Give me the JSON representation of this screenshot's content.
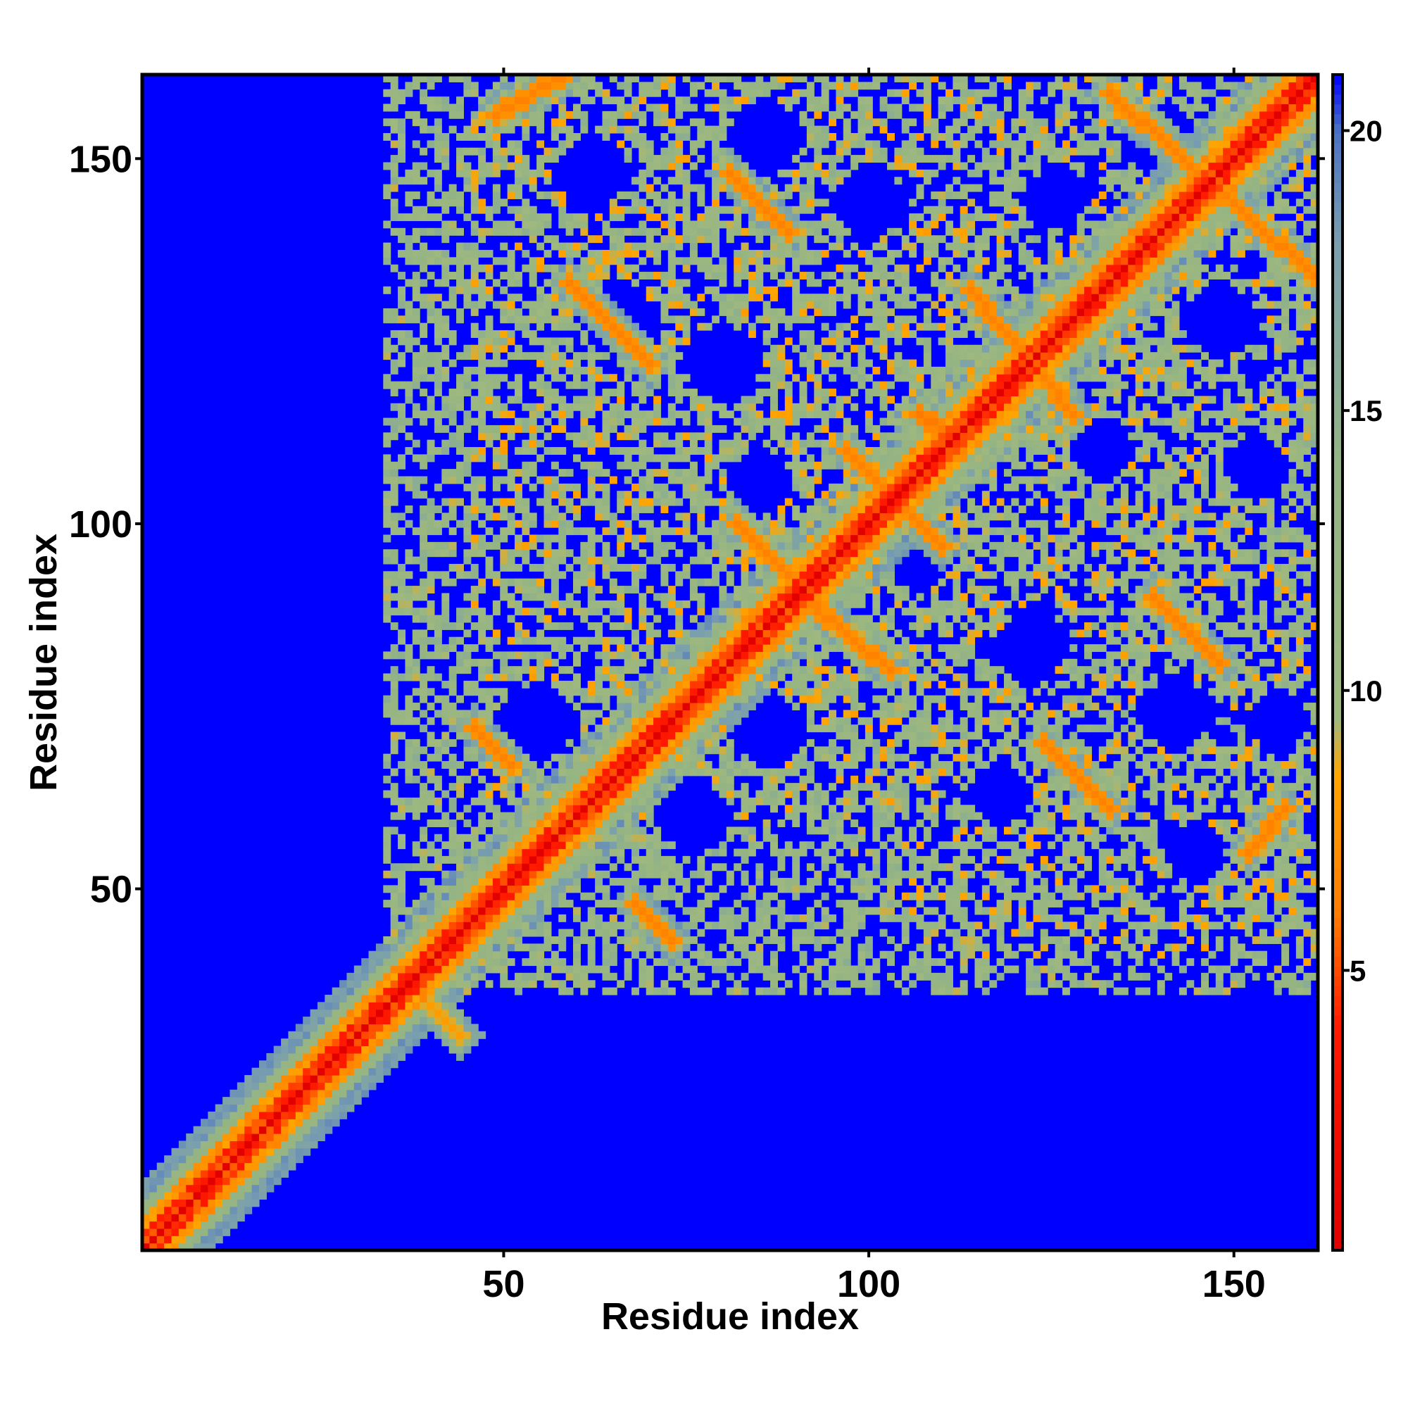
{
  "chart_data": {
    "type": "heatmap",
    "title": "",
    "xlabel": "Residue index",
    "ylabel": "Residue index",
    "xlim": [
      1,
      161
    ],
    "ylim": [
      1,
      161
    ],
    "xticks": [
      50,
      100,
      150
    ],
    "yticks": [
      50,
      100,
      150
    ],
    "x_tick_labels": [
      "50",
      "100",
      "150"
    ],
    "y_tick_labels": [
      "50",
      "100",
      "150"
    ],
    "colorbar": {
      "min": 0,
      "max": 21,
      "ticks": [
        5,
        10,
        15,
        20
      ],
      "tick_labels": [
        "5",
        "10",
        "15",
        "20"
      ],
      "stops": [
        {
          "value": 0,
          "color": "#e00000"
        },
        {
          "value": 4,
          "color": "#ff1a00"
        },
        {
          "value": 6,
          "color": "#ff7b00"
        },
        {
          "value": 8.5,
          "color": "#ffa500"
        },
        {
          "value": 9.5,
          "color": "#9fb87f"
        },
        {
          "value": 14,
          "color": "#94b484"
        },
        {
          "value": 18,
          "color": "#7a9fae"
        },
        {
          "value": 20,
          "color": "#4a72c4"
        },
        {
          "value": 21,
          "color": "#0000ff"
        }
      ]
    },
    "background_color": "#0000ff",
    "diagonal": {
      "value": 0
    },
    "diagonal_band": [
      {
        "offset_from": 1,
        "offset_to": 2,
        "value": 3.5
      },
      {
        "offset_from": 3,
        "offset_to": 4,
        "value": 6.5
      },
      {
        "offset_from": 5,
        "offset_to": 6,
        "value": 12
      },
      {
        "offset_from": 7,
        "offset_to": 9,
        "value": 17
      }
    ],
    "diagonal_band_ends": [
      {
        "from": 1,
        "to": 45,
        "max_offset": 9
      },
      {
        "from": 40,
        "to": 161,
        "max_offset": 12
      }
    ],
    "contact_stripes": [
      {
        "start": [
          14,
          12
        ],
        "end": [
          2,
          3
        ],
        "value": 7
      },
      {
        "start": [
          22,
          21
        ],
        "end": [
          14,
          12
        ],
        "value": 7
      },
      {
        "start": [
          30,
          27
        ],
        "end": [
          22,
          21
        ],
        "value": 7
      },
      {
        "start": [
          68,
          48
        ],
        "end": [
          73,
          43
        ],
        "value": 6.5
      },
      {
        "start": [
          46,
          72
        ],
        "end": [
          51,
          67
        ],
        "value": 6.5
      },
      {
        "start": [
          82,
          100
        ],
        "end": [
          93,
          89
        ],
        "value": 6.5
      },
      {
        "start": [
          92,
          89
        ],
        "end": [
          103,
          80
        ],
        "value": 6.5
      },
      {
        "start": [
          97,
          110
        ],
        "end": [
          110,
          97
        ],
        "value": 6.5
      },
      {
        "start": [
          111,
          112
        ],
        "end": [
          107,
          115
        ],
        "value": 6
      },
      {
        "start": [
          59,
          133
        ],
        "end": [
          70,
          122
        ],
        "value": 6.5
      },
      {
        "start": [
          81,
          148
        ],
        "end": [
          89,
          140
        ],
        "value": 6.5
      },
      {
        "start": [
          49,
          156
        ],
        "end": [
          59,
          162
        ],
        "value": 6.5
      },
      {
        "start": [
          114,
          132
        ],
        "end": [
          128,
          115
        ],
        "value": 6.5
      },
      {
        "start": [
          133,
          159
        ],
        "end": [
          161,
          134
        ],
        "value": 6.5
      },
      {
        "start": [
          139,
          90
        ],
        "end": [
          148,
          81
        ],
        "value": 6.5
      },
      {
        "start": [
          124,
          70
        ],
        "end": [
          133,
          61
        ],
        "value": 6.5
      },
      {
        "start": [
          157,
          61
        ],
        "end": [
          152,
          55
        ],
        "value": 6.5
      },
      {
        "start": [
          40,
          34
        ],
        "end": [
          44,
          30
        ],
        "value": 8
      }
    ],
    "halo_regions": [
      {
        "x": [
          34,
          161
        ],
        "y": [
          36,
          162
        ],
        "value": 12,
        "density": 0.55
      },
      {
        "x": [
          46,
          160
        ],
        "y": [
          60,
          162
        ],
        "value": 11,
        "density": 0.6
      },
      {
        "x": [
          105,
          161
        ],
        "y": [
          40,
          100
        ],
        "value": 11,
        "density": 0.55
      }
    ],
    "empty_pockets": [
      {
        "center": [
          55,
          73
        ],
        "radius": 5
      },
      {
        "center": [
          76,
          60
        ],
        "radius": 5
      },
      {
        "center": [
          86,
          72
        ],
        "radius": 5
      },
      {
        "center": [
          66,
          128
        ],
        "radius": 5
      },
      {
        "center": [
          80,
          122
        ],
        "radius": 5
      },
      {
        "center": [
          62,
          148
        ],
        "radius": 5
      },
      {
        "center": [
          86,
          153
        ],
        "radius": 5
      },
      {
        "center": [
          100,
          144
        ],
        "radius": 5
      },
      {
        "center": [
          85,
          106
        ],
        "radius": 4
      },
      {
        "center": [
          107,
          95
        ],
        "radius": 4
      },
      {
        "center": [
          122,
          83
        ],
        "radius": 5
      },
      {
        "center": [
          142,
          74
        ],
        "radius": 5
      },
      {
        "center": [
          156,
          73
        ],
        "radius": 4
      },
      {
        "center": [
          118,
          63
        ],
        "radius": 4
      },
      {
        "center": [
          145,
          55
        ],
        "radius": 4
      },
      {
        "center": [
          148,
          128
        ],
        "radius": 5
      },
      {
        "center": [
          153,
          108
        ],
        "radius": 4
      },
      {
        "center": [
          140,
          152
        ],
        "radius": 5
      },
      {
        "center": [
          126,
          145
        ],
        "radius": 4
      },
      {
        "center": [
          132,
          110
        ],
        "radius": 4
      }
    ]
  }
}
